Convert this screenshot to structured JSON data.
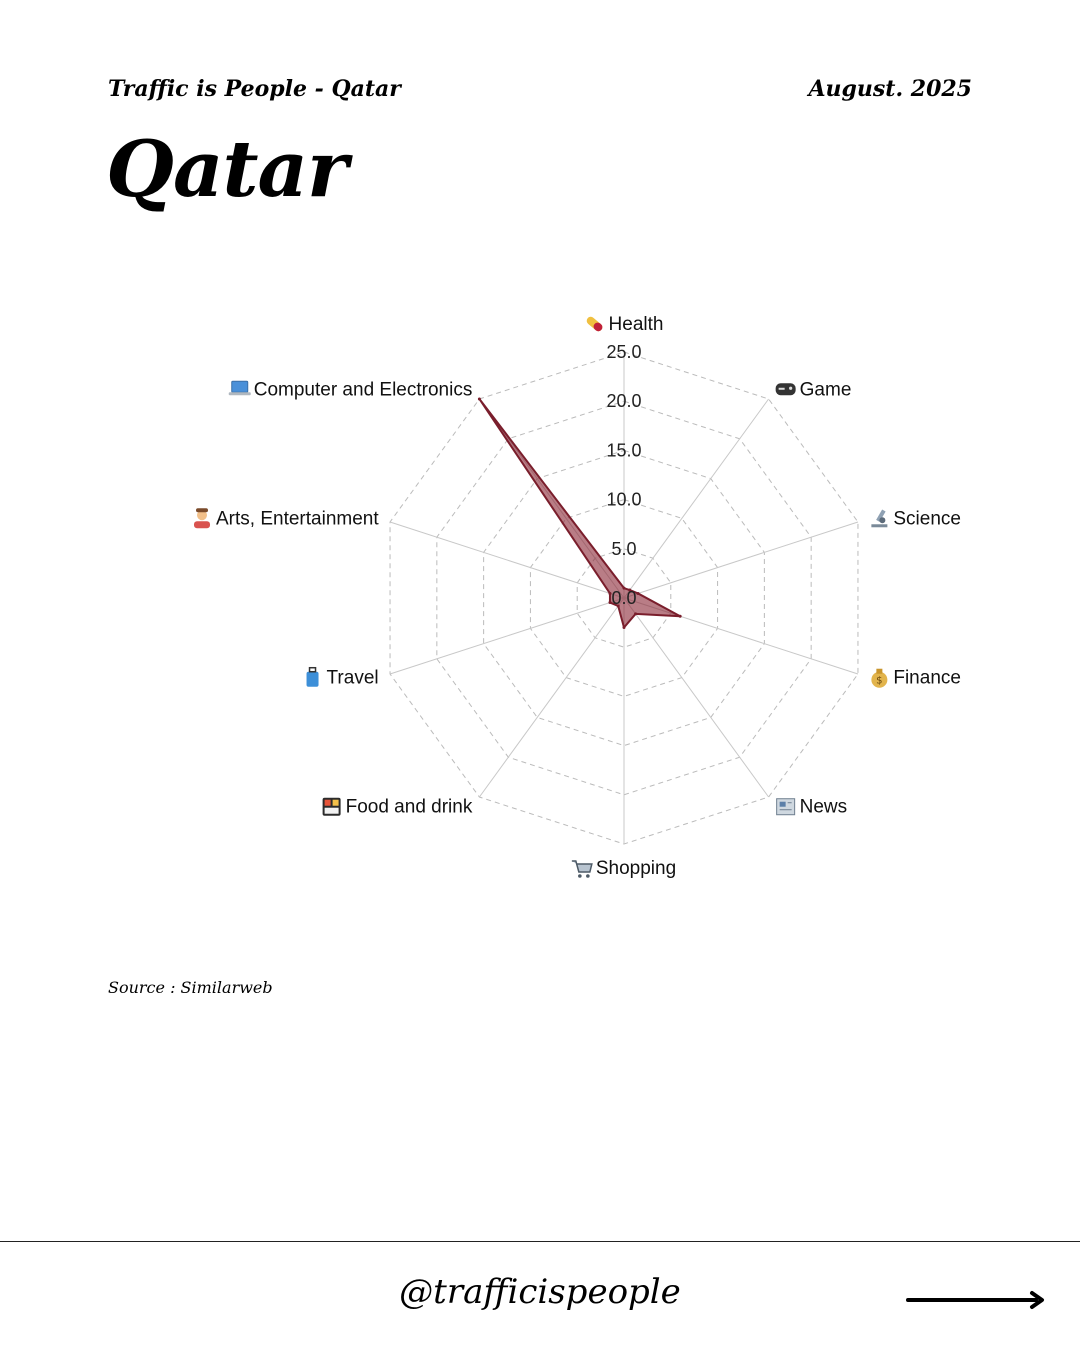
{
  "header": {
    "series_title": "Traffic is People - Qatar",
    "date": "August. 2025"
  },
  "page_title": "Qatar",
  "source": "Source : Similarweb",
  "footer": {
    "handle": "@trafficispeople"
  },
  "colors": {
    "fill": "#8b2636",
    "stroke": "#7a1e2c",
    "grid": "#bbbbbb",
    "spoke": "#c8c8c8"
  },
  "chart_data": {
    "type": "radar",
    "title": "",
    "range": [
      0,
      25
    ],
    "ticks": [
      "0.0",
      "5.0",
      "10.0",
      "15.0",
      "20.0",
      "25.0"
    ],
    "tick_values": [
      0,
      5,
      10,
      15,
      20,
      25
    ],
    "grid": true,
    "categories": [
      {
        "label": "Health",
        "icon": "pill-icon",
        "value": 1.0
      },
      {
        "label": "Game",
        "icon": "game-controller-icon",
        "value": 1.0
      },
      {
        "label": "Science",
        "icon": "microscope-icon",
        "value": 1.5
      },
      {
        "label": "Finance",
        "icon": "money-bag-icon",
        "value": 6.0
      },
      {
        "label": "News",
        "icon": "newspaper-icon",
        "value": 2.0
      },
      {
        "label": "Shopping",
        "icon": "shopping-cart-icon",
        "value": 3.0
      },
      {
        "label": "Food and drink",
        "icon": "bento-box-icon",
        "value": 1.0
      },
      {
        "label": "Travel",
        "icon": "luggage-icon",
        "value": 1.5
      },
      {
        "label": "Arts, Entertainment",
        "icon": "artist-icon",
        "value": 1.5
      },
      {
        "label": "Computer and Electronics",
        "icon": "laptop-icon",
        "value": 25.0
      }
    ]
  }
}
